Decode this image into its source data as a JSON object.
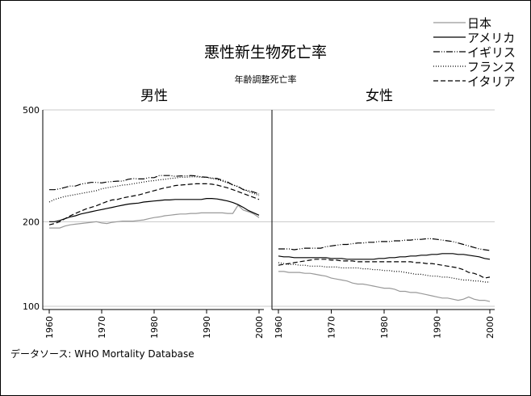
{
  "chart_data": {
    "type": "line",
    "title": "悪性新生物死亡率",
    "subtitle": "年齢調整死亡率",
    "source": "データソース:  WHO Mortality Database",
    "y_scale": "log",
    "ylim": [
      100,
      500
    ],
    "yticks": [
      100,
      200,
      500
    ],
    "xlim": [
      1959,
      2001
    ],
    "xticks": [
      1960,
      1970,
      1980,
      1990,
      2000
    ],
    "grid": "horizontal",
    "legend_placement": "top-right",
    "legend": [
      {
        "name": "日本",
        "color": "#999999",
        "dash": "solid"
      },
      {
        "name": "アメリカ",
        "color": "#000000",
        "dash": "solid"
      },
      {
        "name": "イギリス",
        "color": "#000000",
        "dash": "dash-dot-dot"
      },
      {
        "name": "フランス",
        "color": "#000000",
        "dash": "dotted"
      },
      {
        "name": "イタリア",
        "color": "#000000",
        "dash": "dashed"
      }
    ],
    "x": [
      1960,
      1961,
      1962,
      1963,
      1964,
      1965,
      1966,
      1967,
      1968,
      1969,
      1970,
      1971,
      1972,
      1973,
      1974,
      1975,
      1976,
      1977,
      1978,
      1979,
      1980,
      1981,
      1982,
      1983,
      1984,
      1985,
      1986,
      1987,
      1988,
      1989,
      1990,
      1991,
      1992,
      1993,
      1994,
      1995,
      1996,
      1997,
      1998,
      1999,
      2000
    ],
    "panels": [
      {
        "title": "男性",
        "series": [
          {
            "name": "日本",
            "values": [
              190,
              190,
              190,
              193,
              195,
              196,
              197,
              198,
              199,
              200,
              198,
              197,
              199,
              200,
              201,
              201,
              201,
              202,
              203,
              205,
              207,
              208,
              210,
              211,
              212,
              213,
              213,
              214,
              214,
              215,
              215,
              215,
              215,
              215,
              214,
              214,
              229,
              220,
              217,
              213,
              207
            ]
          },
          {
            "name": "アメリカ",
            "values": [
              200,
              200,
              202,
              205,
              208,
              210,
              213,
              215,
              217,
              219,
              221,
              223,
              225,
              227,
              229,
              231,
              232,
              233,
              235,
              236,
              237,
              238,
              239,
              239,
              240,
              240,
              240,
              240,
              240,
              240,
              242,
              242,
              241,
              239,
              237,
              234,
              230,
              225,
              219,
              215,
              211
            ]
          },
          {
            "name": "イギリス",
            "values": [
              260,
              260,
              262,
              265,
              268,
              268,
              272,
              274,
              276,
              276,
              275,
              277,
              278,
              279,
              279,
              283,
              285,
              284,
              284,
              287,
              287,
              292,
              292,
              292,
              290,
              291,
              291,
              292,
              291,
              289,
              288,
              286,
              285,
              281,
              277,
              270,
              267,
              260,
              258,
              255,
              251
            ]
          },
          {
            "name": "フランス",
            "values": [
              235,
              240,
              243,
              246,
              248,
              250,
              252,
              254,
              256,
              258,
              262,
              264,
              266,
              268,
              270,
              271,
              273,
              275,
              277,
              279,
              280,
              282,
              283,
              285,
              286,
              288,
              288,
              289,
              289,
              288,
              288,
              285,
              283,
              279,
              275,
              271,
              266,
              261,
              256,
              252,
              248
            ]
          },
          {
            "name": "イタリア",
            "values": [
              195,
              197,
              200,
              205,
              210,
              214,
              218,
              222,
              225,
              228,
              232,
              236,
              239,
              240,
              243,
              245,
              247,
              249,
              252,
              255,
              258,
              261,
              264,
              266,
              269,
              270,
              271,
              272,
              273,
              273,
              273,
              272,
              270,
              267,
              264,
              260,
              256,
              252,
              248,
              244,
              240
            ]
          }
        ]
      },
      {
        "title": "女性",
        "series": [
          {
            "name": "日本",
            "values": [
              133,
              133,
              132,
              132,
              132,
              131,
              131,
              130,
              129,
              128,
              126,
              125,
              124,
              123,
              121,
              120,
              120,
              119,
              118,
              117,
              116,
              116,
              115,
              113,
              113,
              112,
              112,
              111,
              110,
              109,
              108,
              107,
              107,
              106,
              105,
              106,
              108,
              106,
              105,
              105,
              104
            ]
          },
          {
            "name": "アメリカ",
            "values": [
              151,
              150,
              150,
              149,
              149,
              149,
              149,
              149,
              149,
              149,
              148,
              148,
              148,
              147,
              147,
              147,
              147,
              147,
              147,
              148,
              148,
              149,
              149,
              150,
              150,
              151,
              151,
              152,
              152,
              153,
              153,
              154,
              154,
              154,
              153,
              153,
              152,
              151,
              150,
              148,
              147
            ]
          },
          {
            "name": "イギリス",
            "values": [
              160,
              160,
              160,
              159,
              160,
              161,
              161,
              161,
              161,
              163,
              164,
              165,
              166,
              166,
              167,
              168,
              168,
              169,
              169,
              170,
              170,
              170,
              171,
              171,
              172,
              172,
              173,
              173,
              174,
              174,
              173,
              172,
              171,
              170,
              168,
              166,
              164,
              162,
              160,
              159,
              158
            ]
          },
          {
            "name": "フランス",
            "values": [
              143,
              142,
              141,
              141,
              140,
              140,
              139,
              139,
              139,
              138,
              138,
              138,
              137,
              137,
              137,
              137,
              136,
              136,
              135,
              135,
              134,
              134,
              133,
              133,
              132,
              131,
              130,
              130,
              129,
              128,
              128,
              127,
              127,
              126,
              125,
              124,
              124,
              123,
              123,
              122,
              122
            ]
          },
          {
            "name": "イタリア",
            "values": [
              140,
              141,
              142,
              143,
              144,
              145,
              146,
              147,
              147,
              147,
              146,
              146,
              145,
              145,
              145,
              144,
              144,
              144,
              144,
              144,
              144,
              144,
              144,
              144,
              144,
              144,
              143,
              143,
              142,
              142,
              141,
              140,
              139,
              138,
              137,
              135,
              132,
              131,
              129,
              126,
              127
            ]
          }
        ]
      }
    ]
  }
}
